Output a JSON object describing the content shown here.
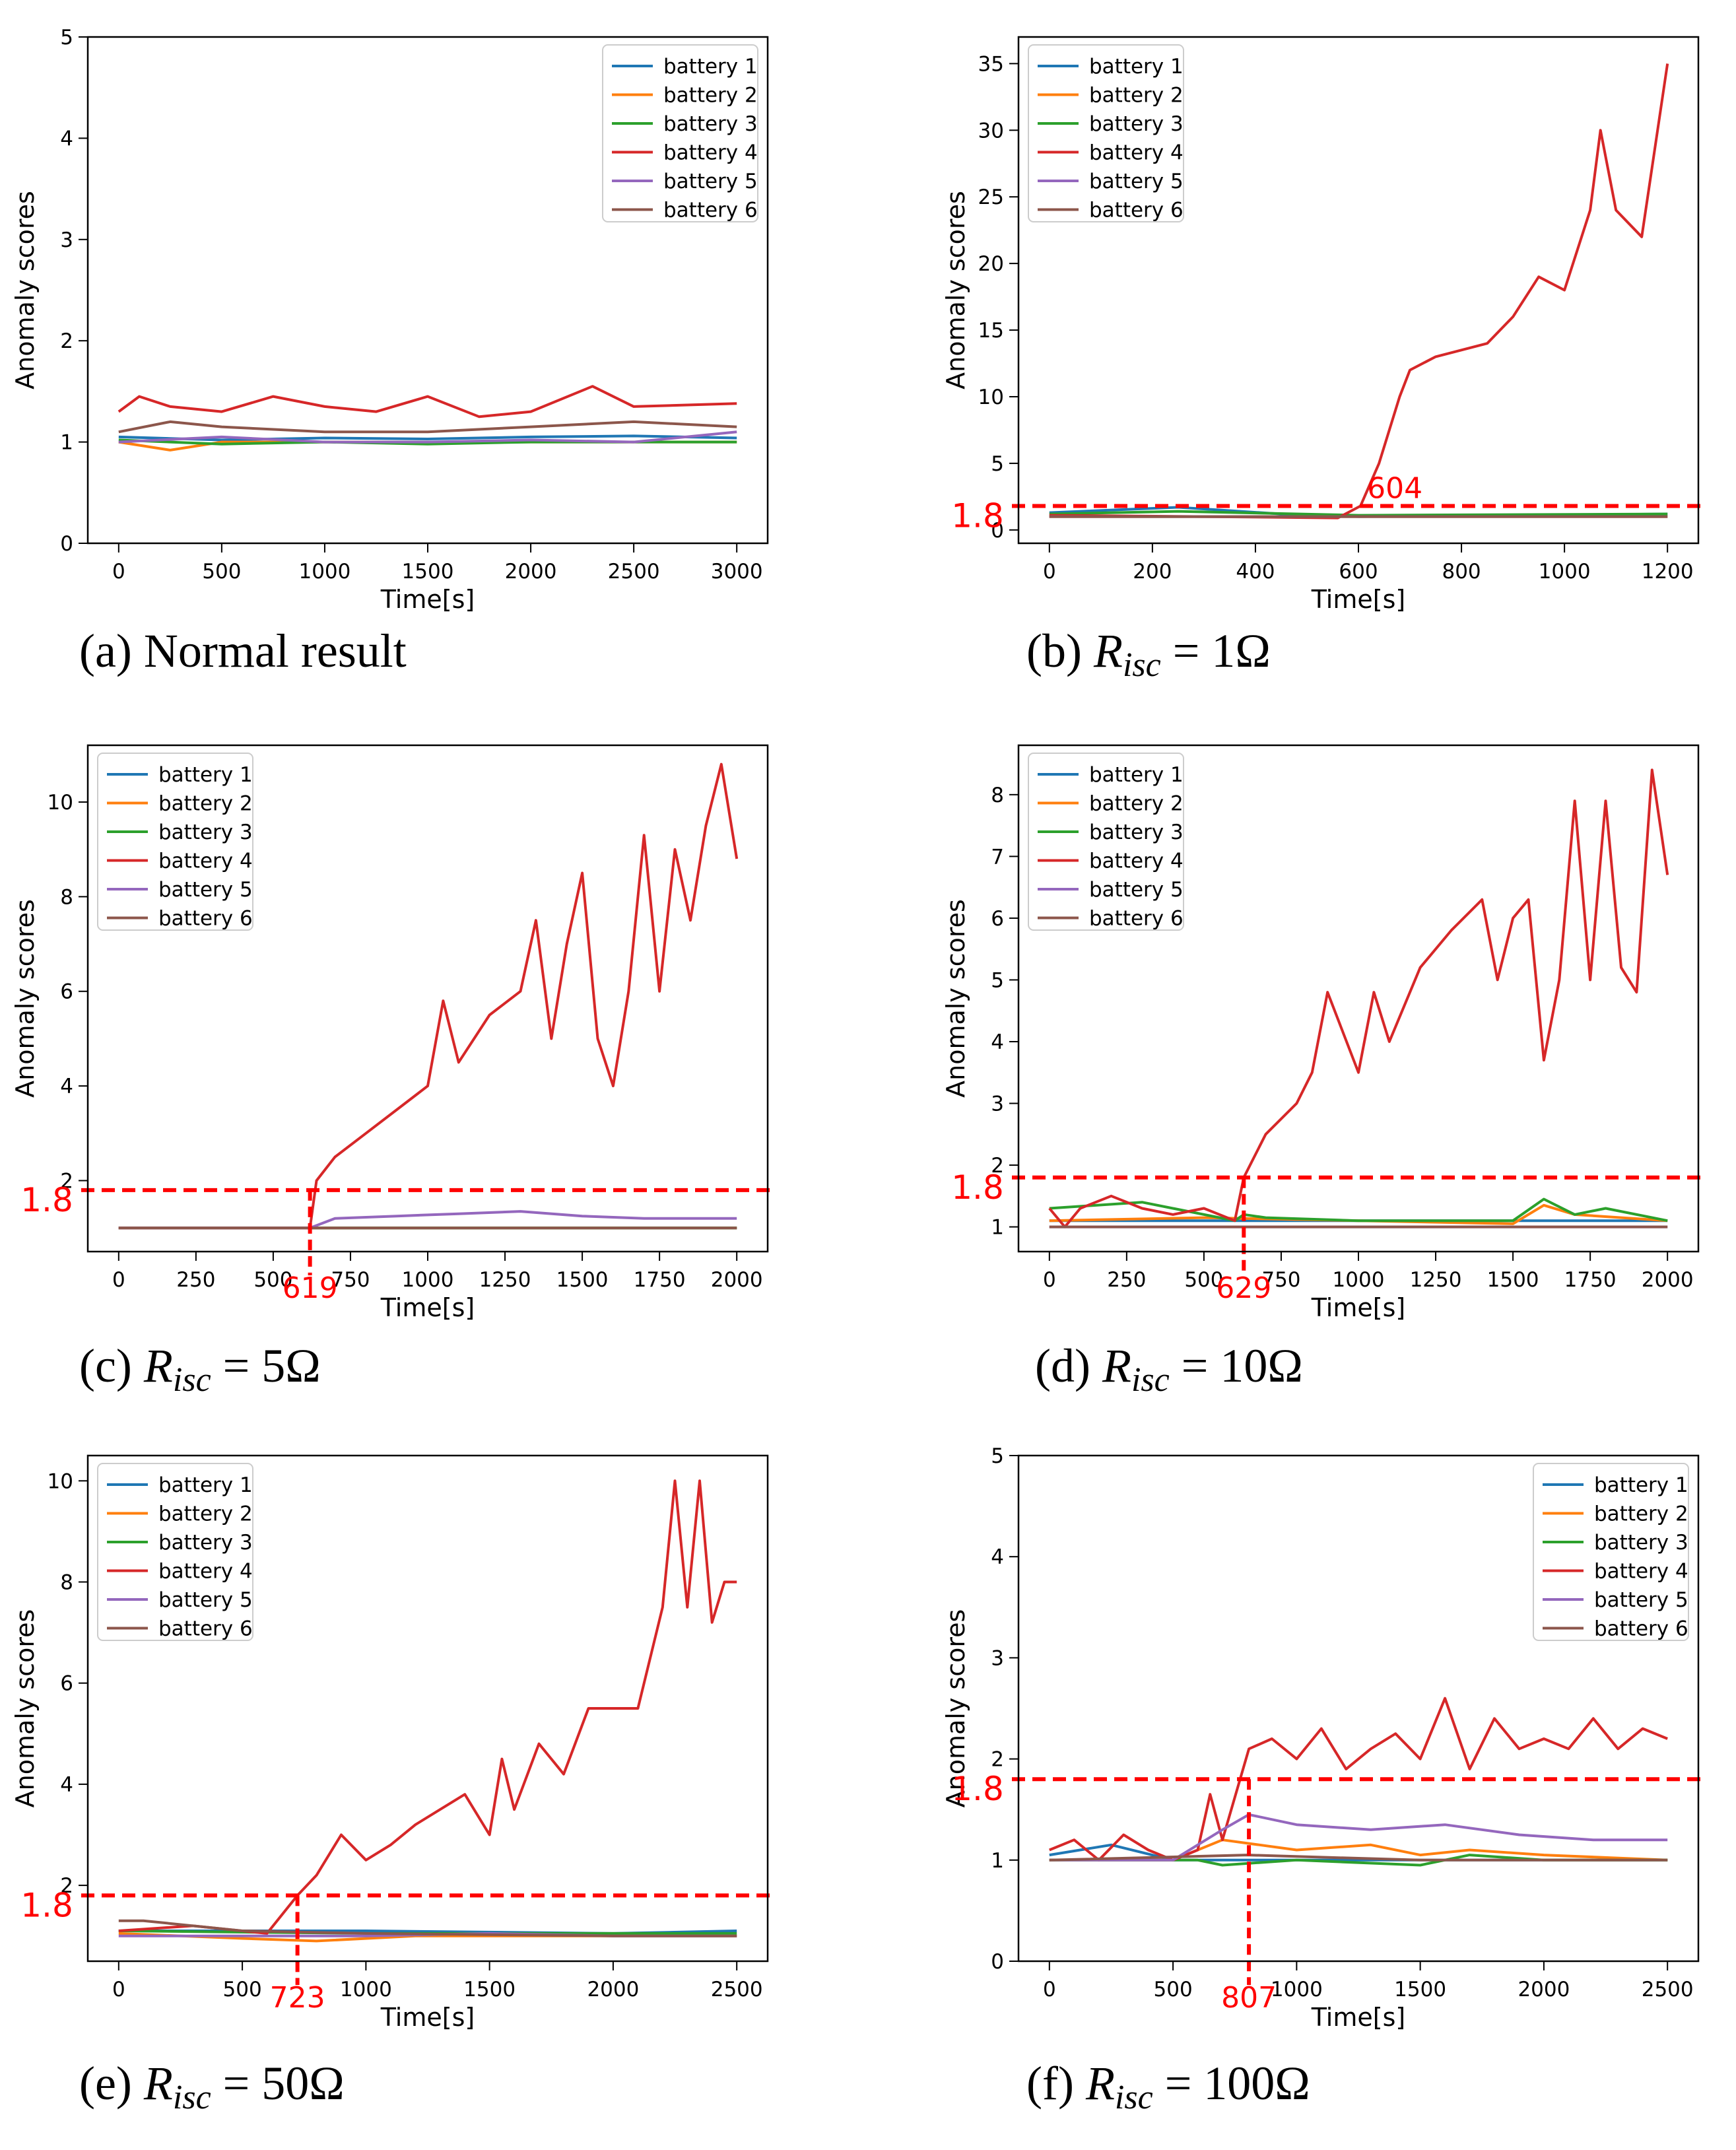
{
  "colors": {
    "battery 1": "#1f77b4",
    "battery 2": "#ff7f0e",
    "battery 3": "#2ca02c",
    "battery 4": "#d62728",
    "battery 5": "#9467bd",
    "battery 6": "#8c564b",
    "threshold": "#ff0000"
  },
  "chart_data": [
    {
      "type": "line",
      "panel": "a",
      "caption": {
        "prefix": "(a) Normal result",
        "resistance": ""
      },
      "title": "",
      "xlabel": "Time[s]",
      "ylabel": "Anomaly scores",
      "xlim": [
        -150,
        3150
      ],
      "ylim": [
        0,
        5
      ],
      "xticks": [
        0,
        500,
        1000,
        1500,
        2000,
        2500,
        3000
      ],
      "yticks": [
        0,
        1,
        2,
        3,
        4,
        5
      ],
      "legend": "top-right",
      "threshold": null,
      "series": [
        {
          "name": "battery 1",
          "x": [
            0,
            500,
            1000,
            1500,
            2000,
            2500,
            3000
          ],
          "values": [
            1.05,
            1.02,
            1.04,
            1.03,
            1.05,
            1.06,
            1.04
          ]
        },
        {
          "name": "battery 2",
          "x": [
            0,
            250,
            500,
            1000,
            1500,
            2000,
            2500,
            3000
          ],
          "values": [
            1.0,
            0.92,
            1.0,
            1.0,
            1.0,
            1.0,
            1.0,
            1.0
          ]
        },
        {
          "name": "battery 3",
          "x": [
            0,
            500,
            1000,
            1500,
            2000,
            2500,
            3000
          ],
          "values": [
            1.02,
            0.98,
            1.0,
            0.98,
            1.0,
            1.0,
            1.0
          ]
        },
        {
          "name": "battery 4",
          "x": [
            0,
            100,
            250,
            500,
            750,
            1000,
            1250,
            1500,
            1750,
            2000,
            2300,
            2500,
            3000
          ],
          "values": [
            1.3,
            1.45,
            1.35,
            1.3,
            1.45,
            1.35,
            1.3,
            1.45,
            1.25,
            1.3,
            1.55,
            1.35,
            1.38
          ]
        },
        {
          "name": "battery 5",
          "x": [
            0,
            500,
            1000,
            1500,
            2000,
            2500,
            3000
          ],
          "values": [
            1.0,
            1.05,
            1.0,
            1.0,
            1.02,
            1.0,
            1.1
          ]
        },
        {
          "name": "battery 6",
          "x": [
            0,
            250,
            500,
            1000,
            1500,
            2000,
            2500,
            3000
          ],
          "values": [
            1.1,
            1.2,
            1.15,
            1.1,
            1.1,
            1.15,
            1.2,
            1.15
          ]
        }
      ]
    },
    {
      "type": "line",
      "panel": "b",
      "caption": {
        "prefix": "(b) ",
        "resistance": "1Ω"
      },
      "title": "",
      "xlabel": "Time[s]",
      "ylabel": "Anomaly scores",
      "xlim": [
        -60,
        1260
      ],
      "ylim": [
        -1,
        37
      ],
      "xticks": [
        0,
        200,
        400,
        600,
        800,
        1000,
        1200
      ],
      "yticks": [
        0,
        5,
        10,
        15,
        20,
        25,
        30,
        35
      ],
      "legend": "top-left",
      "threshold": {
        "value": 1.8,
        "label": "1.8",
        "marker_x": null,
        "marker_label": "604"
      },
      "series": [
        {
          "name": "battery 1",
          "x": [
            0,
            250,
            450,
            600,
            1200
          ],
          "values": [
            1.3,
            1.7,
            1.2,
            1.0,
            1.2
          ]
        },
        {
          "name": "battery 2",
          "x": [
            0,
            1200
          ],
          "values": [
            1.0,
            1.0
          ]
        },
        {
          "name": "battery 3",
          "x": [
            0,
            250,
            600,
            1200
          ],
          "values": [
            1.2,
            1.4,
            1.1,
            1.2
          ]
        },
        {
          "name": "battery 4",
          "x": [
            0,
            300,
            560,
            604,
            640,
            680,
            700,
            750,
            850,
            900,
            950,
            1000,
            1050,
            1070,
            1100,
            1150,
            1200
          ],
          "values": [
            1.1,
            1.0,
            0.9,
            1.8,
            5.0,
            10.0,
            12.0,
            13.0,
            14.0,
            16.0,
            19.0,
            18.0,
            24.0,
            30.0,
            24.0,
            22.0,
            35.0
          ]
        },
        {
          "name": "battery 5",
          "x": [
            0,
            1200
          ],
          "values": [
            1.0,
            1.0
          ]
        },
        {
          "name": "battery 6",
          "x": [
            0,
            1200
          ],
          "values": [
            1.0,
            1.0
          ]
        }
      ]
    },
    {
      "type": "line",
      "panel": "c",
      "caption": {
        "prefix": "(c) ",
        "resistance": "5Ω"
      },
      "title": "",
      "xlabel": "Time[s]",
      "ylabel": "Anomaly scores",
      "xlim": [
        -100,
        2100
      ],
      "ylim": [
        0.5,
        11.2
      ],
      "xticks": [
        0,
        250,
        500,
        750,
        1000,
        1250,
        1500,
        1750,
        2000
      ],
      "yticks": [
        2,
        4,
        6,
        8,
        10
      ],
      "legend": "top-left",
      "threshold": {
        "value": 1.8,
        "label": "1.8",
        "marker_x": 619,
        "marker_label": "619"
      },
      "series": [
        {
          "name": "battery 1",
          "x": [
            0,
            2000
          ],
          "values": [
            1.0,
            1.0
          ]
        },
        {
          "name": "battery 2",
          "x": [
            0,
            2000
          ],
          "values": [
            1.0,
            1.0
          ]
        },
        {
          "name": "battery 3",
          "x": [
            0,
            2000
          ],
          "values": [
            1.0,
            1.0
          ]
        },
        {
          "name": "battery 4",
          "x": [
            0,
            619,
            640,
            700,
            800,
            900,
            1000,
            1050,
            1100,
            1200,
            1300,
            1350,
            1400,
            1450,
            1500,
            1550,
            1600,
            1650,
            1700,
            1750,
            1800,
            1850,
            1900,
            1950,
            2000
          ],
          "values": [
            1.0,
            1.0,
            2.0,
            2.5,
            3.0,
            3.5,
            4.0,
            5.8,
            4.5,
            5.5,
            6.0,
            7.5,
            5.0,
            7.0,
            8.5,
            5.0,
            4.0,
            6.0,
            9.3,
            6.0,
            9.0,
            7.5,
            9.5,
            10.8,
            8.8
          ]
        },
        {
          "name": "battery 5",
          "x": [
            0,
            619,
            700,
            900,
            1100,
            1300,
            1500,
            1700,
            1900,
            2000
          ],
          "values": [
            1.0,
            1.0,
            1.2,
            1.25,
            1.3,
            1.35,
            1.25,
            1.2,
            1.2,
            1.2
          ]
        },
        {
          "name": "battery 6",
          "x": [
            0,
            2000
          ],
          "values": [
            1.0,
            1.0
          ]
        }
      ]
    },
    {
      "type": "line",
      "panel": "d",
      "caption": {
        "prefix": "(d) ",
        "resistance": "10Ω"
      },
      "title": "",
      "xlabel": "Time[s]",
      "ylabel": "Anomaly scores",
      "xlim": [
        -100,
        2100
      ],
      "ylim": [
        0.6,
        8.8
      ],
      "xticks": [
        0,
        250,
        500,
        750,
        1000,
        1250,
        1500,
        1750,
        2000
      ],
      "yticks": [
        1,
        2,
        3,
        4,
        5,
        6,
        7,
        8
      ],
      "legend": "top-left",
      "threshold": {
        "value": 1.8,
        "label": "1.8",
        "marker_x": 629,
        "marker_label": "629"
      },
      "series": [
        {
          "name": "battery 1",
          "x": [
            0,
            2000
          ],
          "values": [
            1.1,
            1.1
          ]
        },
        {
          "name": "battery 2",
          "x": [
            0,
            500,
            1000,
            1500,
            1600,
            1700,
            2000
          ],
          "values": [
            1.1,
            1.15,
            1.1,
            1.05,
            1.35,
            1.2,
            1.1
          ]
        },
        {
          "name": "battery 3",
          "x": [
            0,
            300,
            600,
            629,
            700,
            1000,
            1500,
            1600,
            1700,
            1800,
            2000
          ],
          "values": [
            1.3,
            1.4,
            1.1,
            1.2,
            1.15,
            1.1,
            1.1,
            1.45,
            1.2,
            1.3,
            1.1
          ]
        },
        {
          "name": "battery 4",
          "x": [
            0,
            50,
            100,
            200,
            300,
            400,
            500,
            600,
            629,
            700,
            800,
            850,
            900,
            1000,
            1050,
            1100,
            1200,
            1300,
            1400,
            1450,
            1500,
            1550,
            1600,
            1650,
            1700,
            1750,
            1800,
            1850,
            1900,
            1950,
            2000
          ],
          "values": [
            1.3,
            1.0,
            1.3,
            1.5,
            1.3,
            1.2,
            1.3,
            1.1,
            1.8,
            2.5,
            3.0,
            3.5,
            4.8,
            3.5,
            4.8,
            4.0,
            5.2,
            5.8,
            6.3,
            5.0,
            6.0,
            6.3,
            3.7,
            5.0,
            7.9,
            5.0,
            7.9,
            5.2,
            4.8,
            8.4,
            6.7
          ]
        },
        {
          "name": "battery 5",
          "x": [
            0,
            2000
          ],
          "values": [
            1.0,
            1.0
          ]
        },
        {
          "name": "battery 6",
          "x": [
            0,
            2000
          ],
          "values": [
            1.0,
            1.0
          ]
        }
      ]
    },
    {
      "type": "line",
      "panel": "e",
      "caption": {
        "prefix": "(e) ",
        "resistance": "50Ω"
      },
      "title": "",
      "xlabel": "Time[s]",
      "ylabel": "Anomaly scores",
      "xlim": [
        -125,
        2625
      ],
      "ylim": [
        0.5,
        10.5
      ],
      "xticks": [
        0,
        500,
        1000,
        1500,
        2000,
        2500
      ],
      "yticks": [
        2,
        4,
        6,
        8,
        10
      ],
      "legend": "top-left",
      "threshold": {
        "value": 1.8,
        "label": "1.8",
        "marker_x": 723,
        "marker_label": "723"
      },
      "series": [
        {
          "name": "battery 1",
          "x": [
            0,
            1000,
            2000,
            2500
          ],
          "values": [
            1.1,
            1.1,
            1.05,
            1.1
          ]
        },
        {
          "name": "battery 2",
          "x": [
            0,
            500,
            800,
            1200,
            2000,
            2500
          ],
          "values": [
            1.05,
            0.95,
            0.9,
            1.0,
            1.0,
            1.0
          ]
        },
        {
          "name": "battery 3",
          "x": [
            0,
            1000,
            2000,
            2500
          ],
          "values": [
            1.1,
            1.05,
            1.05,
            1.05
          ]
        },
        {
          "name": "battery 4",
          "x": [
            0,
            300,
            600,
            723,
            800,
            900,
            1000,
            1100,
            1200,
            1300,
            1400,
            1500,
            1550,
            1600,
            1700,
            1800,
            1900,
            2000,
            2100,
            2200,
            2250,
            2300,
            2350,
            2400,
            2450,
            2500
          ],
          "values": [
            1.1,
            1.2,
            1.05,
            1.8,
            2.2,
            3.0,
            2.5,
            2.8,
            3.2,
            3.5,
            3.8,
            3.0,
            4.5,
            3.5,
            4.8,
            4.2,
            5.5,
            5.5,
            5.5,
            7.5,
            10.0,
            7.5,
            10.0,
            7.2,
            8.0,
            8.0
          ]
        },
        {
          "name": "battery 5",
          "x": [
            0,
            1000,
            1500,
            2000,
            2500
          ],
          "values": [
            1.0,
            1.0,
            1.05,
            1.0,
            1.0
          ]
        },
        {
          "name": "battery 6",
          "x": [
            0,
            100,
            500,
            1000,
            2000,
            2500
          ],
          "values": [
            1.3,
            1.3,
            1.1,
            1.05,
            1.0,
            1.0
          ]
        }
      ]
    },
    {
      "type": "line",
      "panel": "f",
      "caption": {
        "prefix": "(f) ",
        "resistance": "100Ω"
      },
      "title": "",
      "xlabel": "Time[s]",
      "ylabel": "Anomaly scores",
      "xlim": [
        -125,
        2625
      ],
      "ylim": [
        0,
        5
      ],
      "xticks": [
        0,
        500,
        1000,
        1500,
        2000,
        2500
      ],
      "yticks": [
        0,
        1,
        2,
        3,
        4,
        5
      ],
      "legend": "top-right",
      "threshold": {
        "value": 1.8,
        "label": "1.8",
        "marker_x": 807,
        "marker_label": "807"
      },
      "series": [
        {
          "name": "battery 1",
          "x": [
            0,
            250,
            500,
            1000,
            2000,
            2500
          ],
          "values": [
            1.05,
            1.15,
            1.0,
            1.0,
            1.0,
            1.0
          ]
        },
        {
          "name": "battery 2",
          "x": [
            0,
            500,
            700,
            1000,
            1300,
            1500,
            1700,
            2000,
            2500
          ],
          "values": [
            1.0,
            1.0,
            1.2,
            1.1,
            1.15,
            1.05,
            1.1,
            1.05,
            1.0
          ]
        },
        {
          "name": "battery 3",
          "x": [
            0,
            600,
            700,
            1000,
            1500,
            1700,
            2000,
            2500
          ],
          "values": [
            1.0,
            1.0,
            0.95,
            1.0,
            0.95,
            1.05,
            1.0,
            1.0
          ]
        },
        {
          "name": "battery 4",
          "x": [
            0,
            100,
            200,
            300,
            400,
            500,
            600,
            650,
            700,
            807,
            900,
            1000,
            1100,
            1200,
            1300,
            1400,
            1500,
            1600,
            1700,
            1800,
            1900,
            2000,
            2100,
            2200,
            2300,
            2400,
            2500
          ],
          "values": [
            1.1,
            1.2,
            1.0,
            1.25,
            1.1,
            1.0,
            1.1,
            1.65,
            1.2,
            2.1,
            2.2,
            2.0,
            2.3,
            1.9,
            2.1,
            2.25,
            2.0,
            2.6,
            1.9,
            2.4,
            2.1,
            2.2,
            2.1,
            2.4,
            2.1,
            2.3,
            2.2
          ]
        },
        {
          "name": "battery 5",
          "x": [
            0,
            500,
            700,
            807,
            1000,
            1300,
            1600,
            1900,
            2200,
            2500
          ],
          "values": [
            1.0,
            1.0,
            1.3,
            1.45,
            1.35,
            1.3,
            1.35,
            1.25,
            1.2,
            1.2
          ]
        },
        {
          "name": "battery 6",
          "x": [
            0,
            800,
            1500,
            2500
          ],
          "values": [
            1.0,
            1.05,
            1.0,
            1.0
          ]
        }
      ]
    }
  ]
}
